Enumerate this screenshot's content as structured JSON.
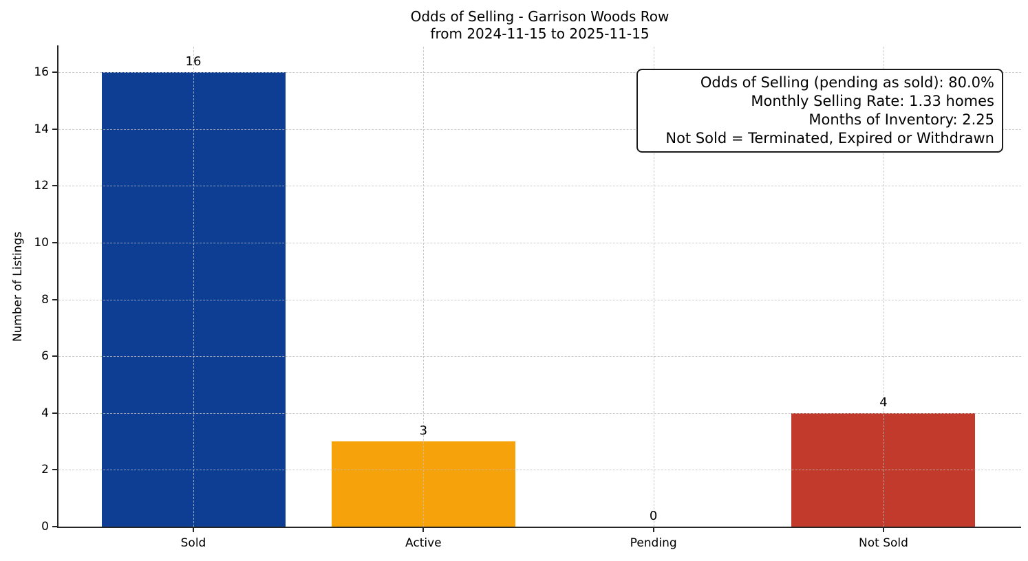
{
  "chart_data": {
    "type": "bar",
    "title": "Odds of Selling - Garrison Woods Row",
    "subtitle": "from 2024-11-15 to 2025-11-15",
    "categories": [
      "Sold",
      "Active",
      "Pending",
      "Not Sold"
    ],
    "values": [
      16,
      3,
      0,
      4
    ],
    "value_labels": [
      "16",
      "3",
      "0",
      "4"
    ],
    "bar_colors": [
      "#0d3e94",
      "#f6a30b",
      "#888888",
      "#c23a2c"
    ],
    "xlabel": "",
    "ylabel": "Number of Listings",
    "yticks": [
      0,
      2,
      4,
      6,
      8,
      10,
      12,
      14,
      16
    ],
    "ylim": [
      0,
      16.9
    ],
    "grid": true,
    "grid_style": "dashed",
    "legend": "none",
    "annotation": {
      "position": "top-right",
      "lines": [
        "Odds of Selling (pending as sold): 80.0%",
        "Monthly Selling Rate: 1.33 homes",
        "Months of Inventory: 2.25",
        "Not Sold = Terminated, Expired or Withdrawn"
      ]
    },
    "colors": {
      "spine": "#262626",
      "grid": "#bebebe",
      "text": "#000000",
      "background": "#ffffff"
    }
  }
}
